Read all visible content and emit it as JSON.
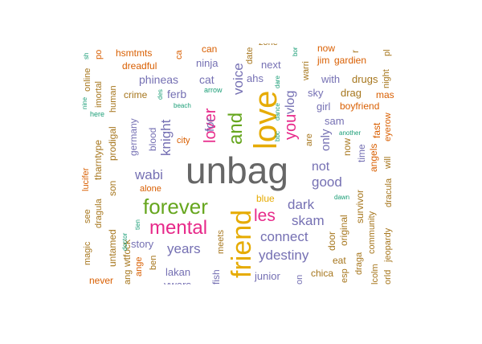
{
  "colors": {
    "gray": "#666666",
    "orange": "#D95F02",
    "purple": "#7570B3",
    "pink": "#E7298A",
    "green": "#66A61E",
    "gold": "#E6AB02",
    "brown": "#A6761D",
    "teal": "#1B9E77"
  },
  "words": [
    "unbag",
    "love",
    "friend",
    "forever",
    "and",
    "mental",
    "you",
    "les",
    "lover",
    "vlog",
    "voice",
    "knight",
    "wabi",
    "dark",
    "years",
    "connect",
    "skam",
    "good",
    "not",
    "ydestiny",
    "for",
    "only",
    "blue",
    "junior",
    "story",
    "ferb",
    "phineas",
    "cat",
    "ninja",
    "can",
    "next",
    "ahs",
    "with",
    "drugs",
    "jim",
    "gardien",
    "sky",
    "drag",
    "boyfriend",
    "mas",
    "girl",
    "sam",
    "now",
    "time",
    "angels",
    "fast",
    "eye",
    "row",
    "will",
    "dracula",
    "survivor",
    "original",
    "community",
    "jeopardy",
    "door",
    "eat",
    "draga",
    "chica",
    "esp",
    "lcolm",
    "lakan",
    "ywars",
    "fish",
    "meets",
    "ang",
    "never",
    "ange",
    "ben",
    "magic",
    "see",
    "dragula",
    "untamed",
    "son",
    "wtfock",
    "prodigal",
    "tharntype",
    "lucifer",
    "alone",
    "city",
    "germany",
    "blood",
    "crime",
    "human",
    "hsmtmts",
    "dreadful",
    "online",
    "imortal",
    "po",
    "ca",
    "date",
    "zone",
    "bor",
    "warri",
    "r",
    "night",
    "pl",
    "ar",
    "are",
    "here",
    "nine",
    "sh",
    "des",
    "beach",
    "arrow",
    "bbc",
    "dance",
    "dare",
    "another",
    "dawn",
    "doctor",
    "tien",
    "orld",
    "on",
    "now"
  ]
}
